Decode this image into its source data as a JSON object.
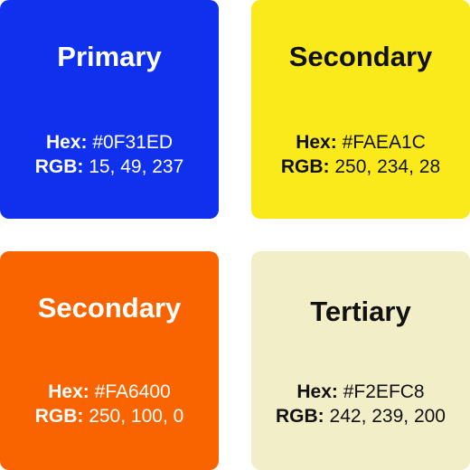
{
  "swatches": [
    {
      "name": "Primary",
      "hex_label": "Hex:",
      "hex": "#0F31ED",
      "rgb_label": "RGB:",
      "rgb": "15, 49, 237",
      "background": "#0F31ED",
      "text_color": "#FFFFFF"
    },
    {
      "name": "Secondary",
      "hex_label": "Hex:",
      "hex": "#FAEA1C",
      "rgb_label": "RGB:",
      "rgb": "250, 234, 28",
      "background": "#FAEA1C",
      "text_color": "#111111"
    },
    {
      "name": "Secondary",
      "hex_label": "Hex:",
      "hex": "#FA6400",
      "rgb_label": "RGB:",
      "rgb": "250, 100, 0",
      "background": "#FA6400",
      "text_color": "#FFFFFF"
    },
    {
      "name": "Tertiary",
      "hex_label": "Hex:",
      "hex": "#F2EFC8",
      "rgb_label": "RGB:",
      "rgb": "242, 239, 200",
      "background": "#F2EFC8",
      "text_color": "#111111"
    }
  ]
}
